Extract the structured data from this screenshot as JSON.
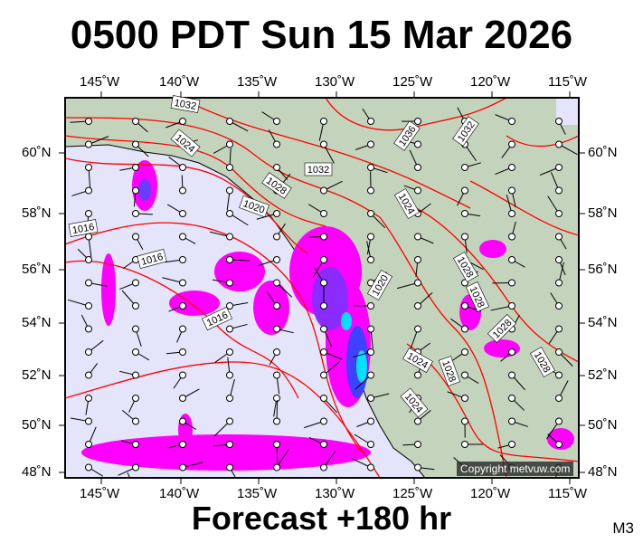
{
  "header": {
    "title": "0500 PDT Sun 15 Mar 2026"
  },
  "footer": {
    "forecast": "Forecast +180 hr",
    "model": "M3"
  },
  "map": {
    "lon_ticks": [
      "145˚W",
      "140˚W",
      "135˚W",
      "130˚W",
      "125˚W",
      "120˚W",
      "115˚W"
    ],
    "lat_ticks": [
      "60˚N",
      "58˚N",
      "56˚N",
      "54˚N",
      "52˚N",
      "50˚N",
      "48˚N"
    ],
    "isobar_labels": [
      "1032",
      "1024",
      "1036",
      "1032",
      "1032",
      "1028",
      "1020",
      "1016",
      "1016",
      "1016",
      "1024",
      "1028",
      "1020",
      "1028",
      "1028",
      "1024",
      "1028",
      "1024",
      "1028"
    ],
    "colors": {
      "sea": "#e4e4fa",
      "land": "#c4d4bc",
      "isobar": "#ff0000",
      "precip": "#ff00ff",
      "precip_heavy": "#6a3cff",
      "precip_max": "#00e0ff"
    },
    "copyright": "Copyright metvuw.com"
  }
}
